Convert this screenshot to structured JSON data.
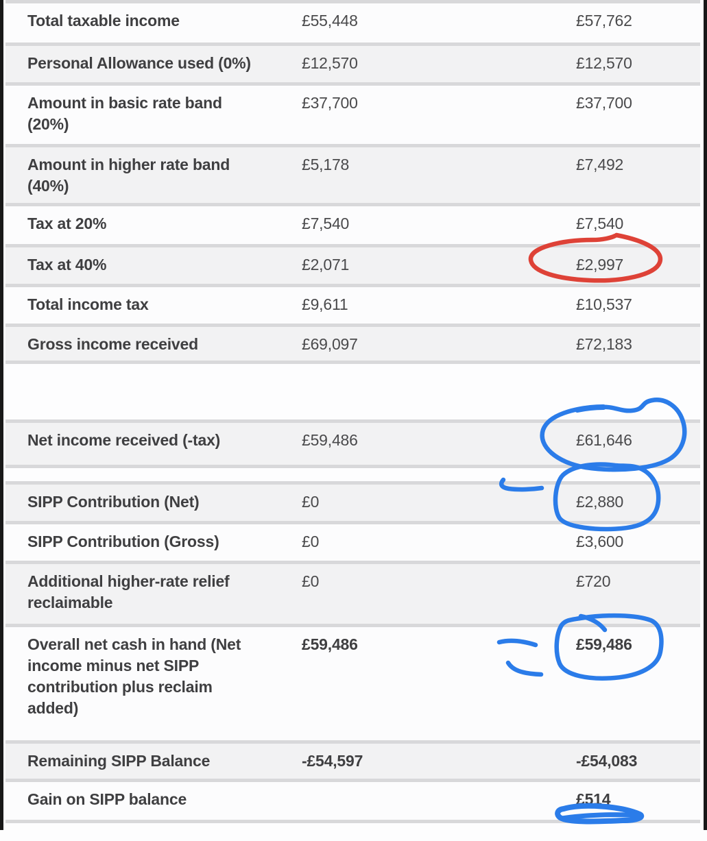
{
  "page": {
    "background": "#fdfdfe",
    "edge_bar_color": "#181818"
  },
  "table": {
    "row_shade_color": "#f2f2f3",
    "row_white_color": "#fcfcfd",
    "separator_color": "#d8d8da",
    "label_color": "#3f3f41",
    "value_color": "#4a4a4c",
    "rows": [
      {
        "label": "Total taxable income",
        "value1": "£55,448",
        "value2": "£57,762",
        "shaded": false,
        "bold": false
      },
      {
        "label": "Personal Allowance used (0%)",
        "value1": "£12,570",
        "value2": "£12,570",
        "shaded": true,
        "bold": false
      },
      {
        "label": "Amount in basic rate band (20%)",
        "value1": "£37,700",
        "value2": "£37,700",
        "shaded": false,
        "bold": false
      },
      {
        "label": "Amount in higher rate band (40%)",
        "value1": "£5,178",
        "value2": "£7,492",
        "shaded": true,
        "bold": false
      },
      {
        "label": "Tax at 20%",
        "value1": "£7,540",
        "value2": "£7,540",
        "shaded": false,
        "bold": false
      },
      {
        "label": "Tax at 40%",
        "value1": "£2,071",
        "value2": "£2,997",
        "shaded": true,
        "bold": false
      },
      {
        "label": "Total income tax",
        "value1": "£9,611",
        "value2": "£10,537",
        "shaded": false,
        "bold": false
      },
      {
        "label": "Gross income received",
        "value1": "£69,097",
        "value2": "£72,183",
        "shaded": true,
        "bold": false
      },
      {
        "label": "Net income received (-tax)",
        "value1": "£59,486",
        "value2": "£61,646",
        "shaded": true,
        "bold": false
      },
      {
        "label": "SIPP Contribution (Net)",
        "value1": "£0",
        "value2": "£2,880",
        "shaded": true,
        "bold": false
      },
      {
        "label": "SIPP Contribution (Gross)",
        "value1": "£0",
        "value2": "£3,600",
        "shaded": false,
        "bold": false
      },
      {
        "label": "Additional higher-rate relief reclaimable",
        "value1": "£0",
        "value2": "£720",
        "shaded": true,
        "bold": false
      },
      {
        "label": "Overall net cash in hand (Net income minus net SIPP contribution plus reclaim added)",
        "value1": "£59,486",
        "value2": "£59,486",
        "shaded": false,
        "bold": true
      },
      {
        "label": "Remaining SIPP Balance",
        "value1": "-£54,597",
        "value2": "-£54,083",
        "shaded": true,
        "bold": true
      },
      {
        "label": "Gain on SIPP balance",
        "value1": "",
        "value2": "£514",
        "shaded": false,
        "bold": true
      }
    ]
  },
  "annotations": {
    "red": "#de4237",
    "blue": "#2b7ce9",
    "marks": [
      {
        "name": "red-circle-tax-at-40",
        "type": "hand-drawn circle",
        "color": "red",
        "around": "£2,997"
      },
      {
        "name": "blue-circle-net-income",
        "type": "hand-drawn circle",
        "color": "blue",
        "around": "£61,646"
      },
      {
        "name": "blue-circle-sipp-net",
        "type": "hand-drawn circle",
        "color": "blue",
        "around": "£2,880"
      },
      {
        "name": "blue-dash-sipp-net",
        "type": "hand-drawn dash",
        "color": "blue",
        "near": "£2,880"
      },
      {
        "name": "blue-circle-overall-cash",
        "type": "hand-drawn circle",
        "color": "blue",
        "around": "£59,486"
      },
      {
        "name": "blue-dash-overall-1",
        "type": "hand-drawn dash",
        "color": "blue",
        "near": "£59,486"
      },
      {
        "name": "blue-dash-overall-2",
        "type": "hand-drawn dash",
        "color": "blue",
        "near": "£59,486"
      },
      {
        "name": "blue-scribble-gain",
        "type": "hand-drawn underline",
        "color": "blue",
        "under": "£514"
      }
    ]
  }
}
